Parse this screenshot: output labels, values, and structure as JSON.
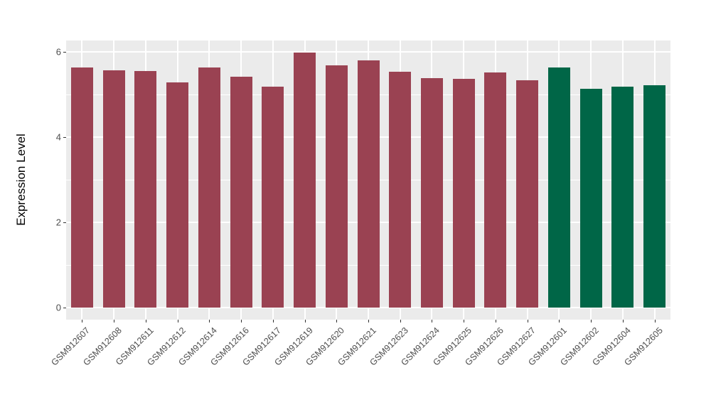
{
  "chart_data": {
    "type": "bar",
    "title": "",
    "xlabel": "",
    "ylabel": "Expression Level",
    "categories": [
      "GSM912607",
      "GSM912608",
      "GSM912611",
      "GSM912612",
      "GSM912614",
      "GSM912616",
      "GSM912617",
      "GSM912619",
      "GSM912620",
      "GSM912621",
      "GSM912623",
      "GSM912624",
      "GSM912625",
      "GSM912626",
      "GSM912627",
      "GSM912601",
      "GSM912602",
      "GSM912604",
      "GSM912605"
    ],
    "values": [
      5.64,
      5.56,
      5.55,
      5.28,
      5.64,
      5.42,
      5.18,
      5.98,
      5.68,
      5.8,
      5.53,
      5.39,
      5.36,
      5.51,
      5.34,
      5.63,
      5.14,
      5.19,
      5.21
    ],
    "bar_colors": [
      "#9A4252",
      "#9A4252",
      "#9A4252",
      "#9A4252",
      "#9A4252",
      "#9A4252",
      "#9A4252",
      "#9A4252",
      "#9A4252",
      "#9A4252",
      "#9A4252",
      "#9A4252",
      "#9A4252",
      "#9A4252",
      "#9A4252",
      "#006647",
      "#006647",
      "#006647",
      "#006647"
    ],
    "group_colors": {
      "maroon_group": "#9A4252",
      "green_group": "#006647"
    },
    "ytick_labels": [
      "0",
      "2",
      "4",
      "6"
    ],
    "yticks": [
      0,
      2,
      4,
      6
    ],
    "minor_yticks": [
      1,
      3,
      5
    ],
    "ylim": [
      0,
      6.27
    ],
    "grid": "on",
    "legend_position": "none",
    "panel_background": "#EBEBEB",
    "grid_color": "#FFFFFF",
    "figure_background": "#FFFFFF",
    "tick_label_color": "#4D4D4D",
    "axis_title_color": "#000000"
  }
}
